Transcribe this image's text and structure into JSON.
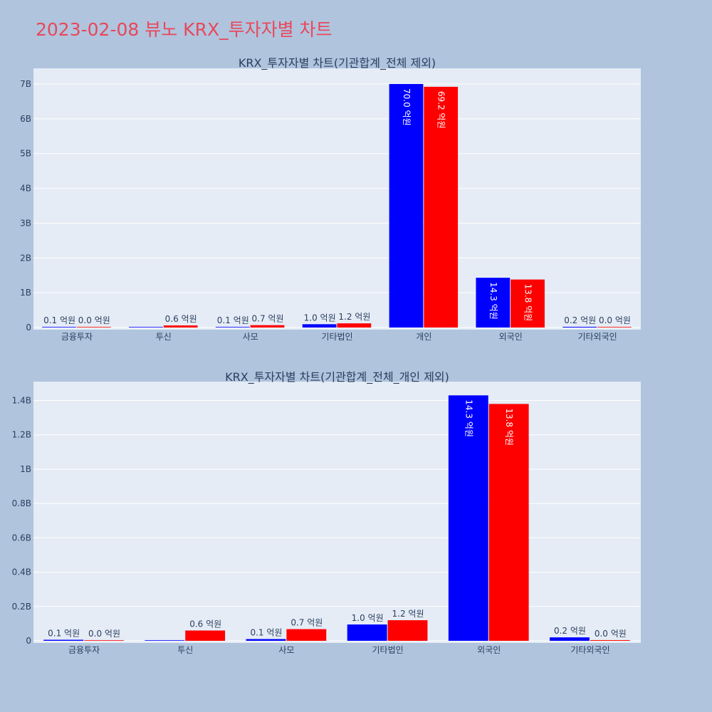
{
  "page_title": "2023-02-08 뷰노 KRX_투자자별 차트",
  "colors": {
    "buy": "#0000ff",
    "sell": "#ff0000",
    "page_bg": "#b0c4de",
    "plot_bg": "#e5ecf6",
    "title": "#e8485a"
  },
  "chart_data": [
    {
      "type": "bar",
      "title": "KRX_투자자별 차트(기관합계_전체 제외)",
      "categories": [
        "금융투자",
        "투신",
        "사모",
        "기타법인",
        "개인",
        "외국인",
        "기타외국인"
      ],
      "series": [
        {
          "color": "#0000ff",
          "values": [
            0.006,
            0,
            0.01,
            0.095,
            7.0,
            1.43,
            0.02
          ],
          "labels": [
            "0.1 억원",
            "",
            "0.1 억원",
            "1.0 억원",
            "70.0 억원",
            "14.3 억원",
            "0.2 억원"
          ]
        },
        {
          "color": "#ff0000",
          "values": [
            0.003,
            0.06,
            0.068,
            0.12,
            6.92,
            1.38,
            0.004
          ],
          "labels": [
            "0.0 억원",
            "0.6 억원",
            "0.7 억원",
            "1.2 억원",
            "69.2 억원",
            "13.8 억원",
            "0.0 억원"
          ]
        }
      ],
      "yticks": [
        0,
        1,
        2,
        3,
        4,
        5,
        6,
        7
      ],
      "ytick_labels": [
        "0",
        "1B",
        "2B",
        "3B",
        "4B",
        "5B",
        "6B",
        "7B"
      ],
      "ylim": [
        0,
        7.45
      ],
      "grid": true,
      "label_orientation": "vertical-inside-for-tall-bars"
    },
    {
      "type": "bar",
      "title": "KRX_투자자별 차트(기관합계_전체_개인 제외)",
      "categories": [
        "금융투자",
        "투신",
        "사모",
        "기타법인",
        "외국인",
        "기타외국인"
      ],
      "series": [
        {
          "color": "#0000ff",
          "values": [
            0.006,
            0,
            0.01,
            0.095,
            1.43,
            0.02
          ],
          "labels": [
            "0.1 억원",
            "",
            "0.1 억원",
            "1.0 억원",
            "14.3 억원",
            "0.2 억원"
          ]
        },
        {
          "color": "#ff0000",
          "values": [
            0.003,
            0.06,
            0.068,
            0.12,
            1.38,
            0.004
          ],
          "labels": [
            "0.0 억원",
            "0.6 억원",
            "0.7 억원",
            "1.2 억원",
            "13.8 억원",
            "0.0 억원"
          ]
        }
      ],
      "yticks": [
        0,
        0.2,
        0.4,
        0.6,
        0.8,
        1.0,
        1.2,
        1.4
      ],
      "ytick_labels": [
        "0",
        "0.2B",
        "0.4B",
        "0.6B",
        "0.8B",
        "1B",
        "1.2B",
        "1.4B"
      ],
      "ylim": [
        0,
        1.51
      ],
      "grid": true,
      "label_orientation": "vertical-inside-for-tall-bars"
    }
  ]
}
